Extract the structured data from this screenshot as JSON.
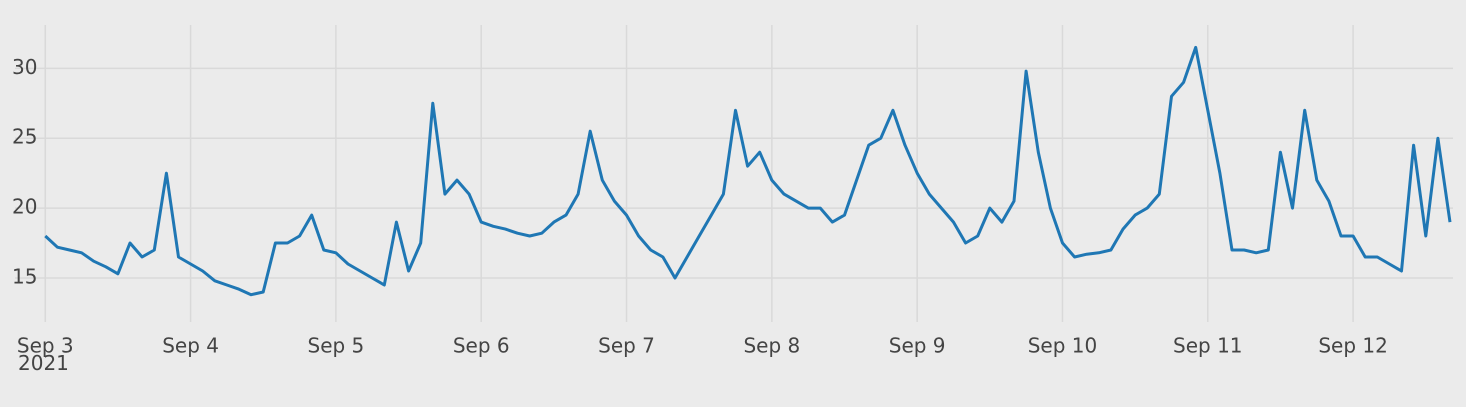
{
  "chart_data": {
    "type": "line",
    "x": [
      "2021-09-03T00:00",
      "2021-09-03T02:00",
      "2021-09-03T04:00",
      "2021-09-03T06:00",
      "2021-09-03T08:00",
      "2021-09-03T10:00",
      "2021-09-03T12:00",
      "2021-09-03T14:00",
      "2021-09-03T16:00",
      "2021-09-03T18:00",
      "2021-09-03T20:00",
      "2021-09-03T22:00",
      "2021-09-04T00:00",
      "2021-09-04T02:00",
      "2021-09-04T04:00",
      "2021-09-04T06:00",
      "2021-09-04T08:00",
      "2021-09-04T10:00",
      "2021-09-04T12:00",
      "2021-09-04T14:00",
      "2021-09-04T16:00",
      "2021-09-04T18:00",
      "2021-09-04T20:00",
      "2021-09-04T22:00",
      "2021-09-05T00:00",
      "2021-09-05T02:00",
      "2021-09-05T04:00",
      "2021-09-05T06:00",
      "2021-09-05T08:00",
      "2021-09-05T10:00",
      "2021-09-05T12:00",
      "2021-09-05T14:00",
      "2021-09-05T16:00",
      "2021-09-05T18:00",
      "2021-09-05T20:00",
      "2021-09-05T22:00",
      "2021-09-06T00:00",
      "2021-09-06T02:00",
      "2021-09-06T04:00",
      "2021-09-06T06:00",
      "2021-09-06T08:00",
      "2021-09-06T10:00",
      "2021-09-06T12:00",
      "2021-09-06T14:00",
      "2021-09-06T16:00",
      "2021-09-06T18:00",
      "2021-09-06T20:00",
      "2021-09-06T22:00",
      "2021-09-07T00:00",
      "2021-09-07T02:00",
      "2021-09-07T04:00",
      "2021-09-07T06:00",
      "2021-09-07T08:00",
      "2021-09-07T10:00",
      "2021-09-07T12:00",
      "2021-09-07T14:00",
      "2021-09-07T16:00",
      "2021-09-07T18:00",
      "2021-09-07T20:00",
      "2021-09-07T22:00",
      "2021-09-08T00:00",
      "2021-09-08T02:00",
      "2021-09-08T04:00",
      "2021-09-08T06:00",
      "2021-09-08T08:00",
      "2021-09-08T10:00",
      "2021-09-08T12:00",
      "2021-09-08T14:00",
      "2021-09-08T16:00",
      "2021-09-08T18:00",
      "2021-09-08T20:00",
      "2021-09-08T22:00",
      "2021-09-09T00:00",
      "2021-09-09T02:00",
      "2021-09-09T04:00",
      "2021-09-09T06:00",
      "2021-09-09T08:00",
      "2021-09-09T10:00",
      "2021-09-09T12:00",
      "2021-09-09T14:00",
      "2021-09-09T16:00",
      "2021-09-09T18:00",
      "2021-09-09T20:00",
      "2021-09-09T22:00",
      "2021-09-10T00:00",
      "2021-09-10T02:00",
      "2021-09-10T04:00",
      "2021-09-10T06:00",
      "2021-09-10T08:00",
      "2021-09-10T10:00",
      "2021-09-10T12:00",
      "2021-09-10T14:00",
      "2021-09-10T16:00",
      "2021-09-10T18:00",
      "2021-09-10T20:00",
      "2021-09-10T22:00",
      "2021-09-11T00:00",
      "2021-09-11T02:00",
      "2021-09-11T04:00",
      "2021-09-11T06:00",
      "2021-09-11T08:00",
      "2021-09-11T10:00",
      "2021-09-11T12:00",
      "2021-09-11T14:00",
      "2021-09-11T16:00",
      "2021-09-11T18:00",
      "2021-09-11T20:00",
      "2021-09-11T22:00",
      "2021-09-12T00:00",
      "2021-09-12T02:00",
      "2021-09-12T04:00",
      "2021-09-12T06:00",
      "2021-09-12T08:00",
      "2021-09-12T10:00",
      "2021-09-12T12:00",
      "2021-09-12T14:00",
      "2021-09-12T16:00"
    ],
    "values": [
      18.0,
      17.2,
      17.0,
      16.8,
      16.2,
      15.8,
      15.3,
      17.5,
      16.5,
      17.0,
      22.5,
      16.5,
      16.0,
      15.5,
      14.8,
      14.5,
      14.2,
      13.8,
      14.0,
      17.5,
      17.5,
      18.0,
      19.5,
      17.0,
      16.8,
      16.0,
      15.5,
      15.0,
      14.5,
      19.0,
      15.5,
      17.5,
      27.5,
      21.0,
      22.0,
      21.0,
      19.0,
      18.7,
      18.5,
      18.2,
      18.0,
      18.2,
      19.0,
      19.5,
      21.0,
      25.5,
      22.0,
      20.5,
      19.5,
      18.0,
      17.0,
      16.5,
      15.0,
      16.5,
      18.0,
      19.5,
      21.0,
      27.0,
      23.0,
      24.0,
      22.0,
      21.0,
      20.5,
      20.0,
      20.0,
      19.0,
      19.5,
      22.0,
      24.5,
      25.0,
      27.0,
      24.5,
      22.5,
      21.0,
      20.0,
      19.0,
      17.5,
      18.0,
      20.0,
      19.0,
      20.5,
      29.8,
      24.0,
      20.0,
      17.5,
      16.5,
      16.7,
      16.8,
      17.0,
      18.5,
      19.5,
      20.0,
      21.0,
      28.0,
      29.0,
      31.5,
      27.0,
      22.5,
      17.0,
      17.0,
      16.8,
      17.0,
      24.0,
      20.0,
      27.0,
      22.0,
      20.5,
      18.0,
      18.0,
      16.5,
      16.5,
      16.0,
      15.5,
      24.5,
      18.0,
      25.0,
      19.0
    ],
    "color": "#1f77b4",
    "xlim": [
      "2021-09-02T19:00",
      "2021-09-12T16:30"
    ],
    "xticks": [
      {
        "value": "2021-09-03T00:00",
        "label": "Sep 3"
      },
      {
        "value": "2021-09-04T00:00",
        "label": "Sep 4"
      },
      {
        "value": "2021-09-05T00:00",
        "label": "Sep 5"
      },
      {
        "value": "2021-09-06T00:00",
        "label": "Sep 6"
      },
      {
        "value": "2021-09-07T00:00",
        "label": "Sep 7"
      },
      {
        "value": "2021-09-08T00:00",
        "label": "Sep 8"
      },
      {
        "value": "2021-09-09T00:00",
        "label": "Sep 9"
      },
      {
        "value": "2021-09-10T00:00",
        "label": "Sep 10"
      },
      {
        "value": "2021-09-11T00:00",
        "label": "Sep 11"
      },
      {
        "value": "2021-09-12T00:00",
        "label": "Sep 12"
      }
    ],
    "x_year_label": "2021",
    "ylim": [
      11.85,
      33.1
    ],
    "yticks": [
      15,
      20,
      25,
      30
    ],
    "grid": true
  }
}
